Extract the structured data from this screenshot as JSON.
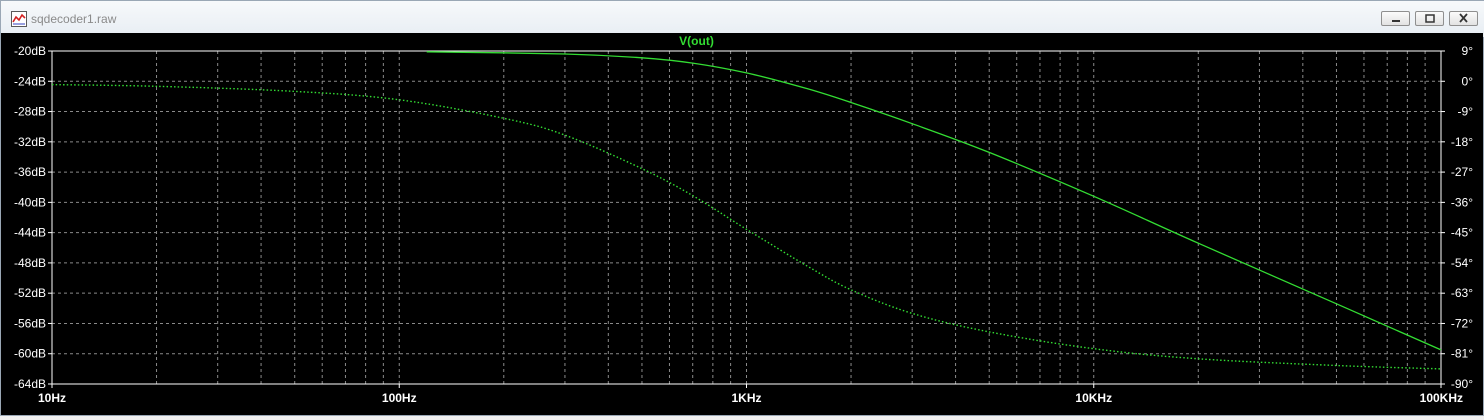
{
  "window": {
    "title": "sqdecoder1.raw"
  },
  "chart_data": {
    "type": "line",
    "title": "V(out)",
    "x_scale": "log",
    "xlim": [
      "10Hz",
      "100KHz"
    ],
    "x_ticks": [
      "10Hz",
      "100Hz",
      "1KHz",
      "10KHz",
      "100KHz"
    ],
    "y_left_ticks": [
      "-20dB",
      "-24dB",
      "-28dB",
      "-32dB",
      "-36dB",
      "-40dB",
      "-44dB",
      "-48dB",
      "-52dB",
      "-56dB",
      "-60dB",
      "-64dB"
    ],
    "y_right_ticks": [
      "9°",
      "0°",
      "-9°",
      "-18°",
      "-27°",
      "-36°",
      "-45°",
      "-54°",
      "-63°",
      "-72°",
      "-81°",
      "-90°"
    ],
    "ylim_left": [
      -64,
      -20
    ],
    "ylim_right": [
      -90,
      9
    ],
    "grid": true,
    "series": [
      {
        "name": "V(out)",
        "style": "solid",
        "axis": "left",
        "color": "#33dd33",
        "x": [
          120,
          300,
          500,
          700,
          1000,
          1500,
          2000,
          3000,
          5000,
          10000,
          20000,
          50000,
          100000
        ],
        "y": [
          -20.1,
          -20.4,
          -20.9,
          -21.6,
          -22.9,
          -25.0,
          -26.8,
          -29.6,
          -33.4,
          -39.2,
          -45.4,
          -53.4,
          -59.5
        ]
      },
      {
        "name": "",
        "style": "dotted",
        "axis": "right",
        "color": "#33dd33",
        "x": [
          10,
          20,
          50,
          100,
          200,
          300,
          500,
          700,
          1000,
          1500,
          2000,
          3000,
          5000,
          10000,
          20000,
          50000,
          100000
        ],
        "y": [
          -1,
          -1.5,
          -3,
          -5.5,
          -11,
          -16,
          -26,
          -34,
          -44,
          -55,
          -62,
          -69,
          -74.5,
          -79.5,
          -82.5,
          -84.5,
          -85.5
        ]
      }
    ]
  }
}
